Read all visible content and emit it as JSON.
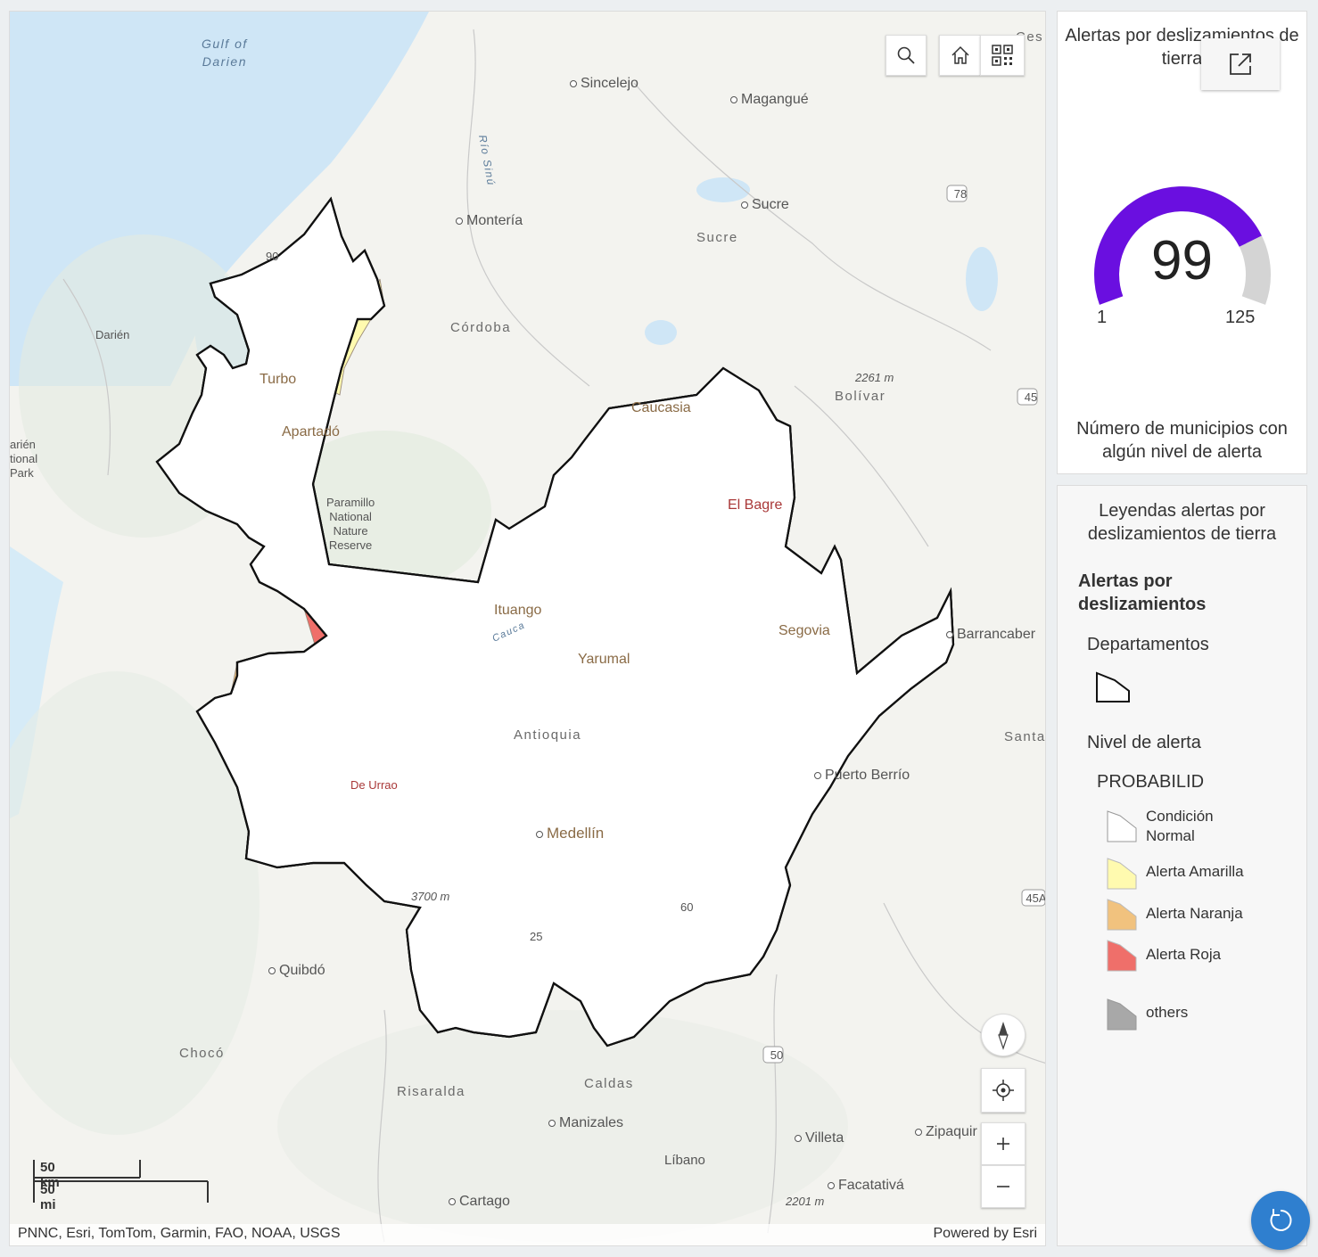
{
  "map": {
    "places": {
      "gulf": "Gulf of\nDarien",
      "sincelejo": "Sincelejo",
      "magangue": "Magangué",
      "monteria": "Montería",
      "sucre_city": "Sucre",
      "sucre_region": "Sucre",
      "cordoba": "Córdoba",
      "darien": "Darién",
      "darien_park": "arién\ntional\nPark",
      "bolivar": "Bolívar",
      "peak_2261": "2261 m",
      "turbo": "Turbo",
      "apartado": "Apartadó",
      "paramillo": "Paramillo\nNational\nNature\nReserve",
      "caucasia": "Caucasia",
      "el_bagre": "El Bagre",
      "ituango": "Ituango",
      "cauca": "Cauca",
      "yarumal": "Yarumal",
      "segovia": "Segovia",
      "barrancabermeja": "Barrancaber",
      "antioquia": "Antioquia",
      "santa": "Santa",
      "puerto_berrio": "Puerto Berrío",
      "de_urrao": "De Urrao",
      "medellin": "Medellín",
      "peak_3700": "3700 m",
      "quibdo": "Quibdó",
      "choco": "Chocó",
      "risaralda": "Risaralda",
      "caldas": "Caldas",
      "manizales": "Manizales",
      "villeta": "Villeta",
      "zipaquira": "Zipaquir",
      "libano": "Líbano",
      "facatativa": "Facatativá",
      "peak_2201": "2201 m",
      "cartago": "Cartago",
      "ces": "Ces",
      "rio_sinu": "Río Sinú",
      "route_78": "78",
      "route_45": "45",
      "route_45a": "45A",
      "route_50": "50",
      "route_60": "60",
      "route_25": "25",
      "route_90": "90"
    },
    "scale_km": "50 km",
    "scale_mi": "50 mi",
    "attribution": "PNNC, Esri, TomTom, Garmin, FAO, NOAA, USGS",
    "powered_by": "Powered by Esri",
    "colors": {
      "water": "#cfe6f6",
      "land": "#f3f3ef",
      "normal": "#ffffff",
      "amarilla": "#fffaaf",
      "naranja": "#f1c27e",
      "roja": "#ef6f6a"
    }
  },
  "gauge": {
    "title": "Alertas por deslizamientos de tierra",
    "value": "99",
    "value_num": 99,
    "min": "1",
    "min_num": 1,
    "max": "125",
    "max_num": 125,
    "description": "Número de municipios con algún nivel de alerta",
    "color": "#6a0fe0",
    "track_color": "#d4d4d4"
  },
  "legend": {
    "title": "Leyendas alertas por deslizamientos de tierra",
    "layer_title": "Alertas por deslizamientos",
    "departamentos": "Departamentos",
    "nivel": "Nivel de alerta",
    "field": "PROBABILID",
    "items": [
      {
        "label": "Condición Normal",
        "color": "#ffffff"
      },
      {
        "label": "Alerta Amarilla",
        "color": "#fffaaf"
      },
      {
        "label": "Alerta Naranja",
        "color": "#f1c27e"
      },
      {
        "label": "Alerta Roja",
        "color": "#ef6f6a"
      },
      {
        "label": "others",
        "color": "#a8a8a8"
      }
    ]
  },
  "icons": [
    "search-icon",
    "home-icon",
    "qr-code-icon",
    "compass-icon",
    "locate-icon",
    "zoom-in-icon",
    "zoom-out-icon",
    "expand-icon",
    "refresh-icon"
  ]
}
